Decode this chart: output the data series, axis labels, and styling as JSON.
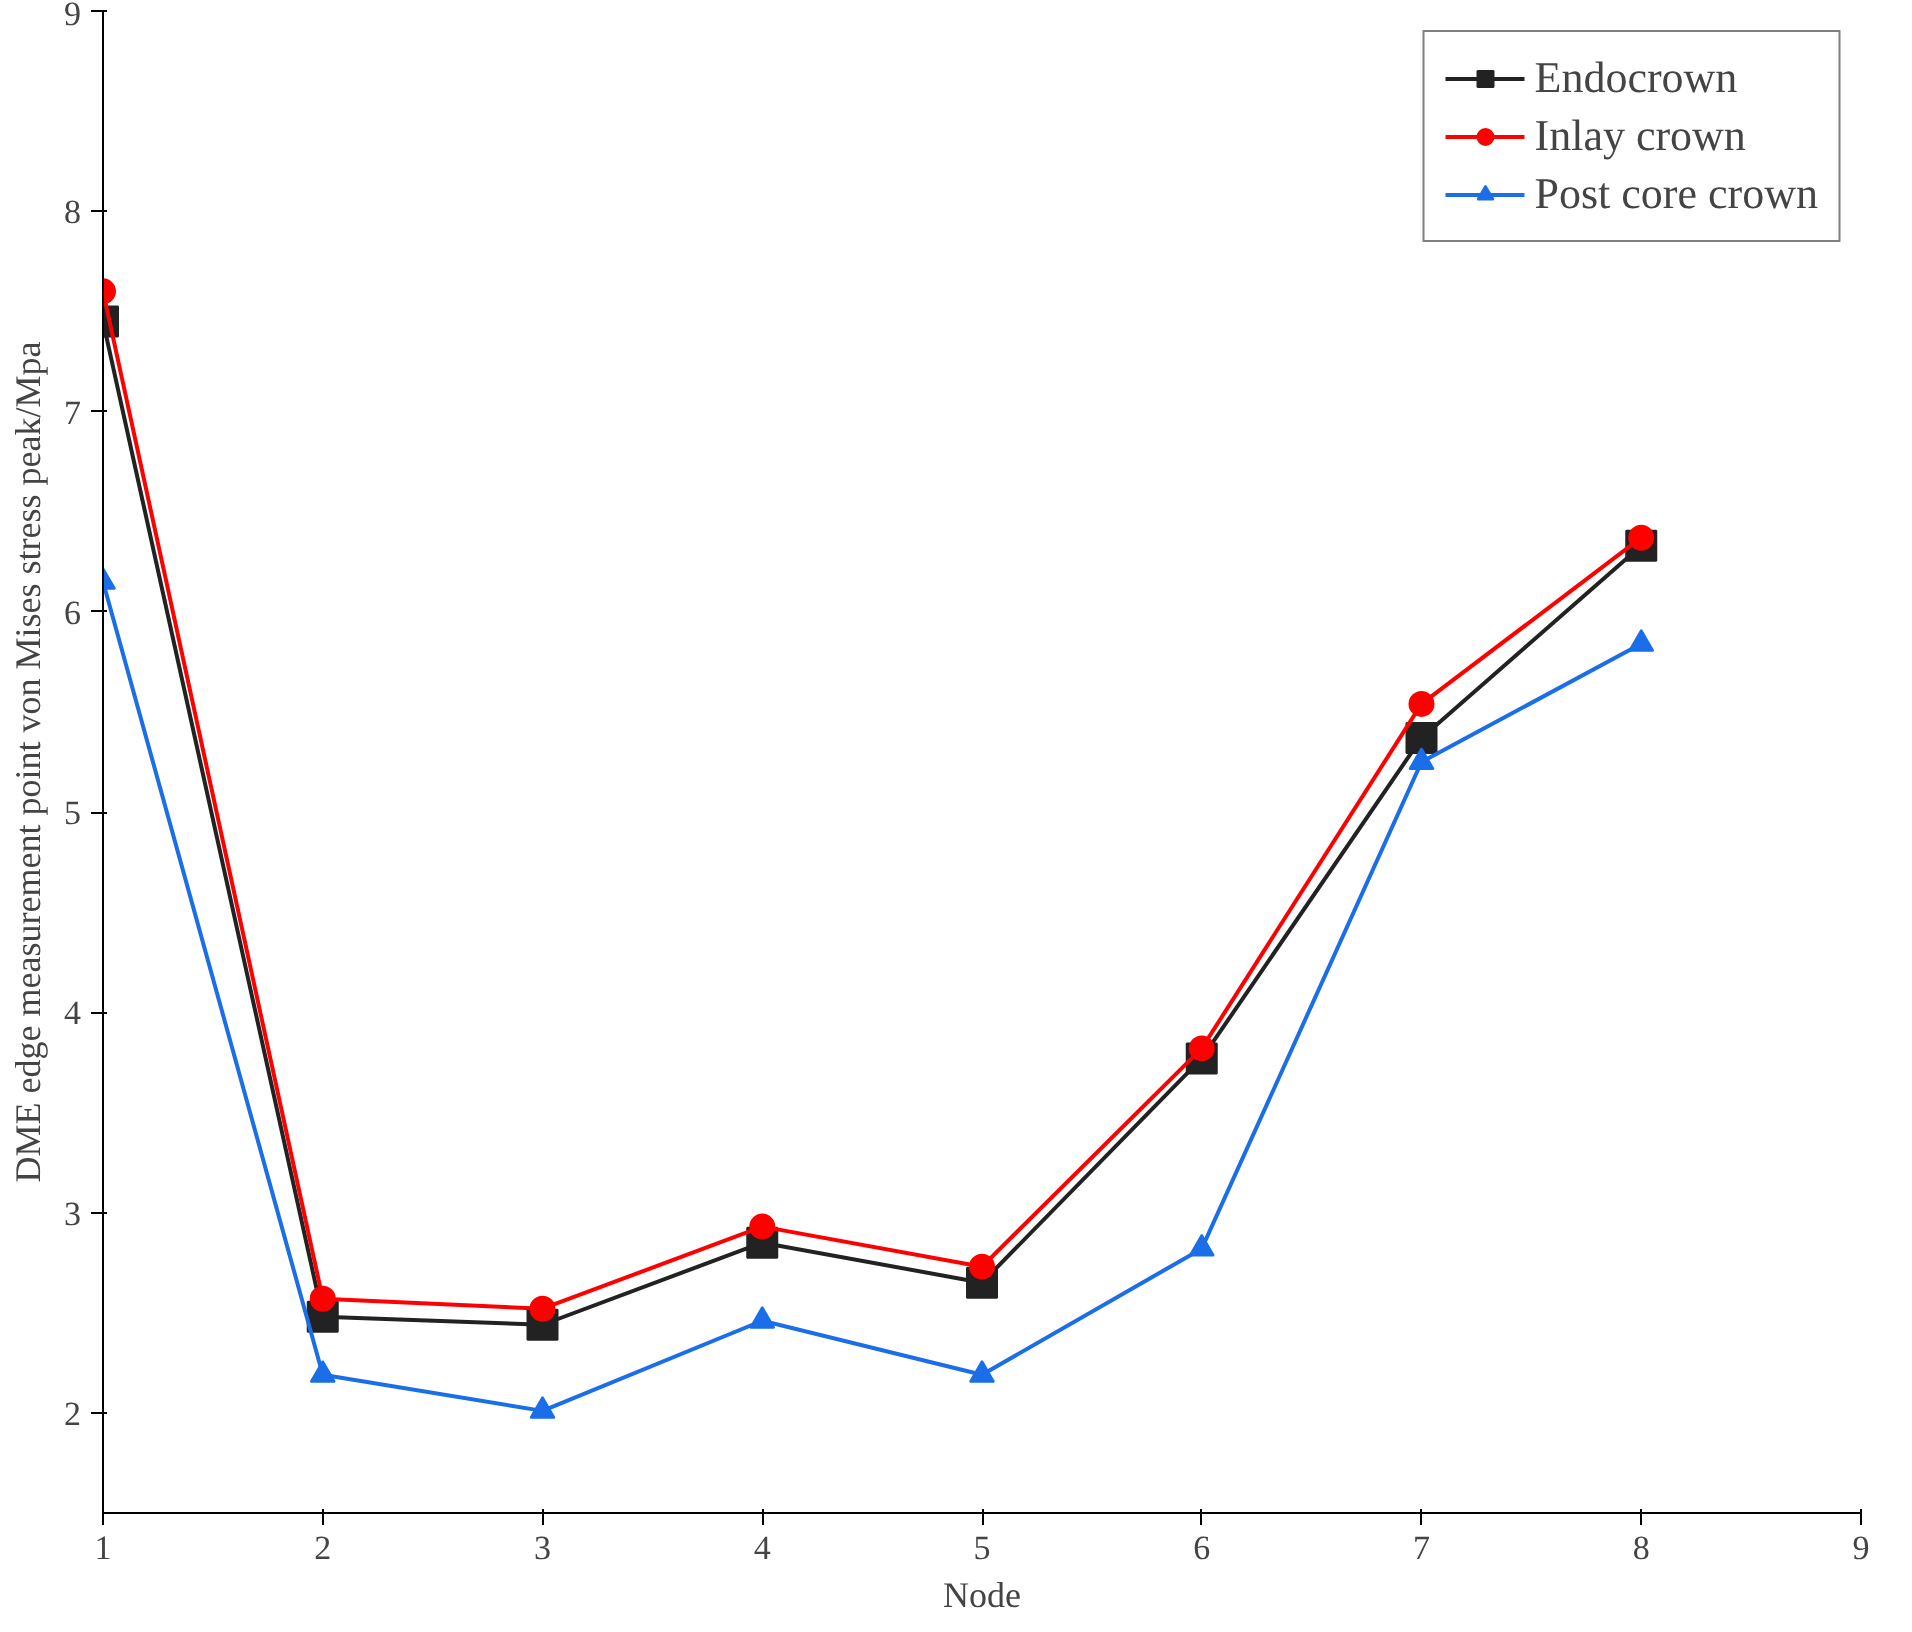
{
  "chart_data": {
    "type": "line",
    "xlabel": "Node",
    "ylabel": "DME edge measurement point von Mises stress peak/Mpa",
    "x": [
      1,
      2,
      3,
      4,
      5,
      6,
      7,
      8
    ],
    "series": [
      {
        "name": "Endocrown",
        "color": "#222222",
        "marker": "square",
        "values": [
          7.45,
          2.48,
          2.44,
          2.85,
          2.65,
          3.77,
          5.37,
          6.33
        ]
      },
      {
        "name": "Inlay crown",
        "color": "#ff0000",
        "marker": "circle",
        "values": [
          7.6,
          2.57,
          2.52,
          2.93,
          2.73,
          3.82,
          5.54,
          6.37
        ]
      },
      {
        "name": "Post core crown",
        "color": "#1a6ee8",
        "marker": "triangle",
        "values": [
          6.15,
          2.19,
          2.01,
          2.46,
          2.19,
          2.82,
          5.25,
          5.84
        ]
      }
    ],
    "xlim": [
      1,
      9
    ],
    "xticks": [
      1,
      2,
      3,
      4,
      5,
      6,
      7,
      8,
      9
    ],
    "ylim": [
      1.5,
      9
    ],
    "yticks": [
      2,
      3,
      4,
      5,
      6,
      7,
      8,
      9
    ],
    "grid": false,
    "legend": "top right",
    "line_style": "solid"
  }
}
